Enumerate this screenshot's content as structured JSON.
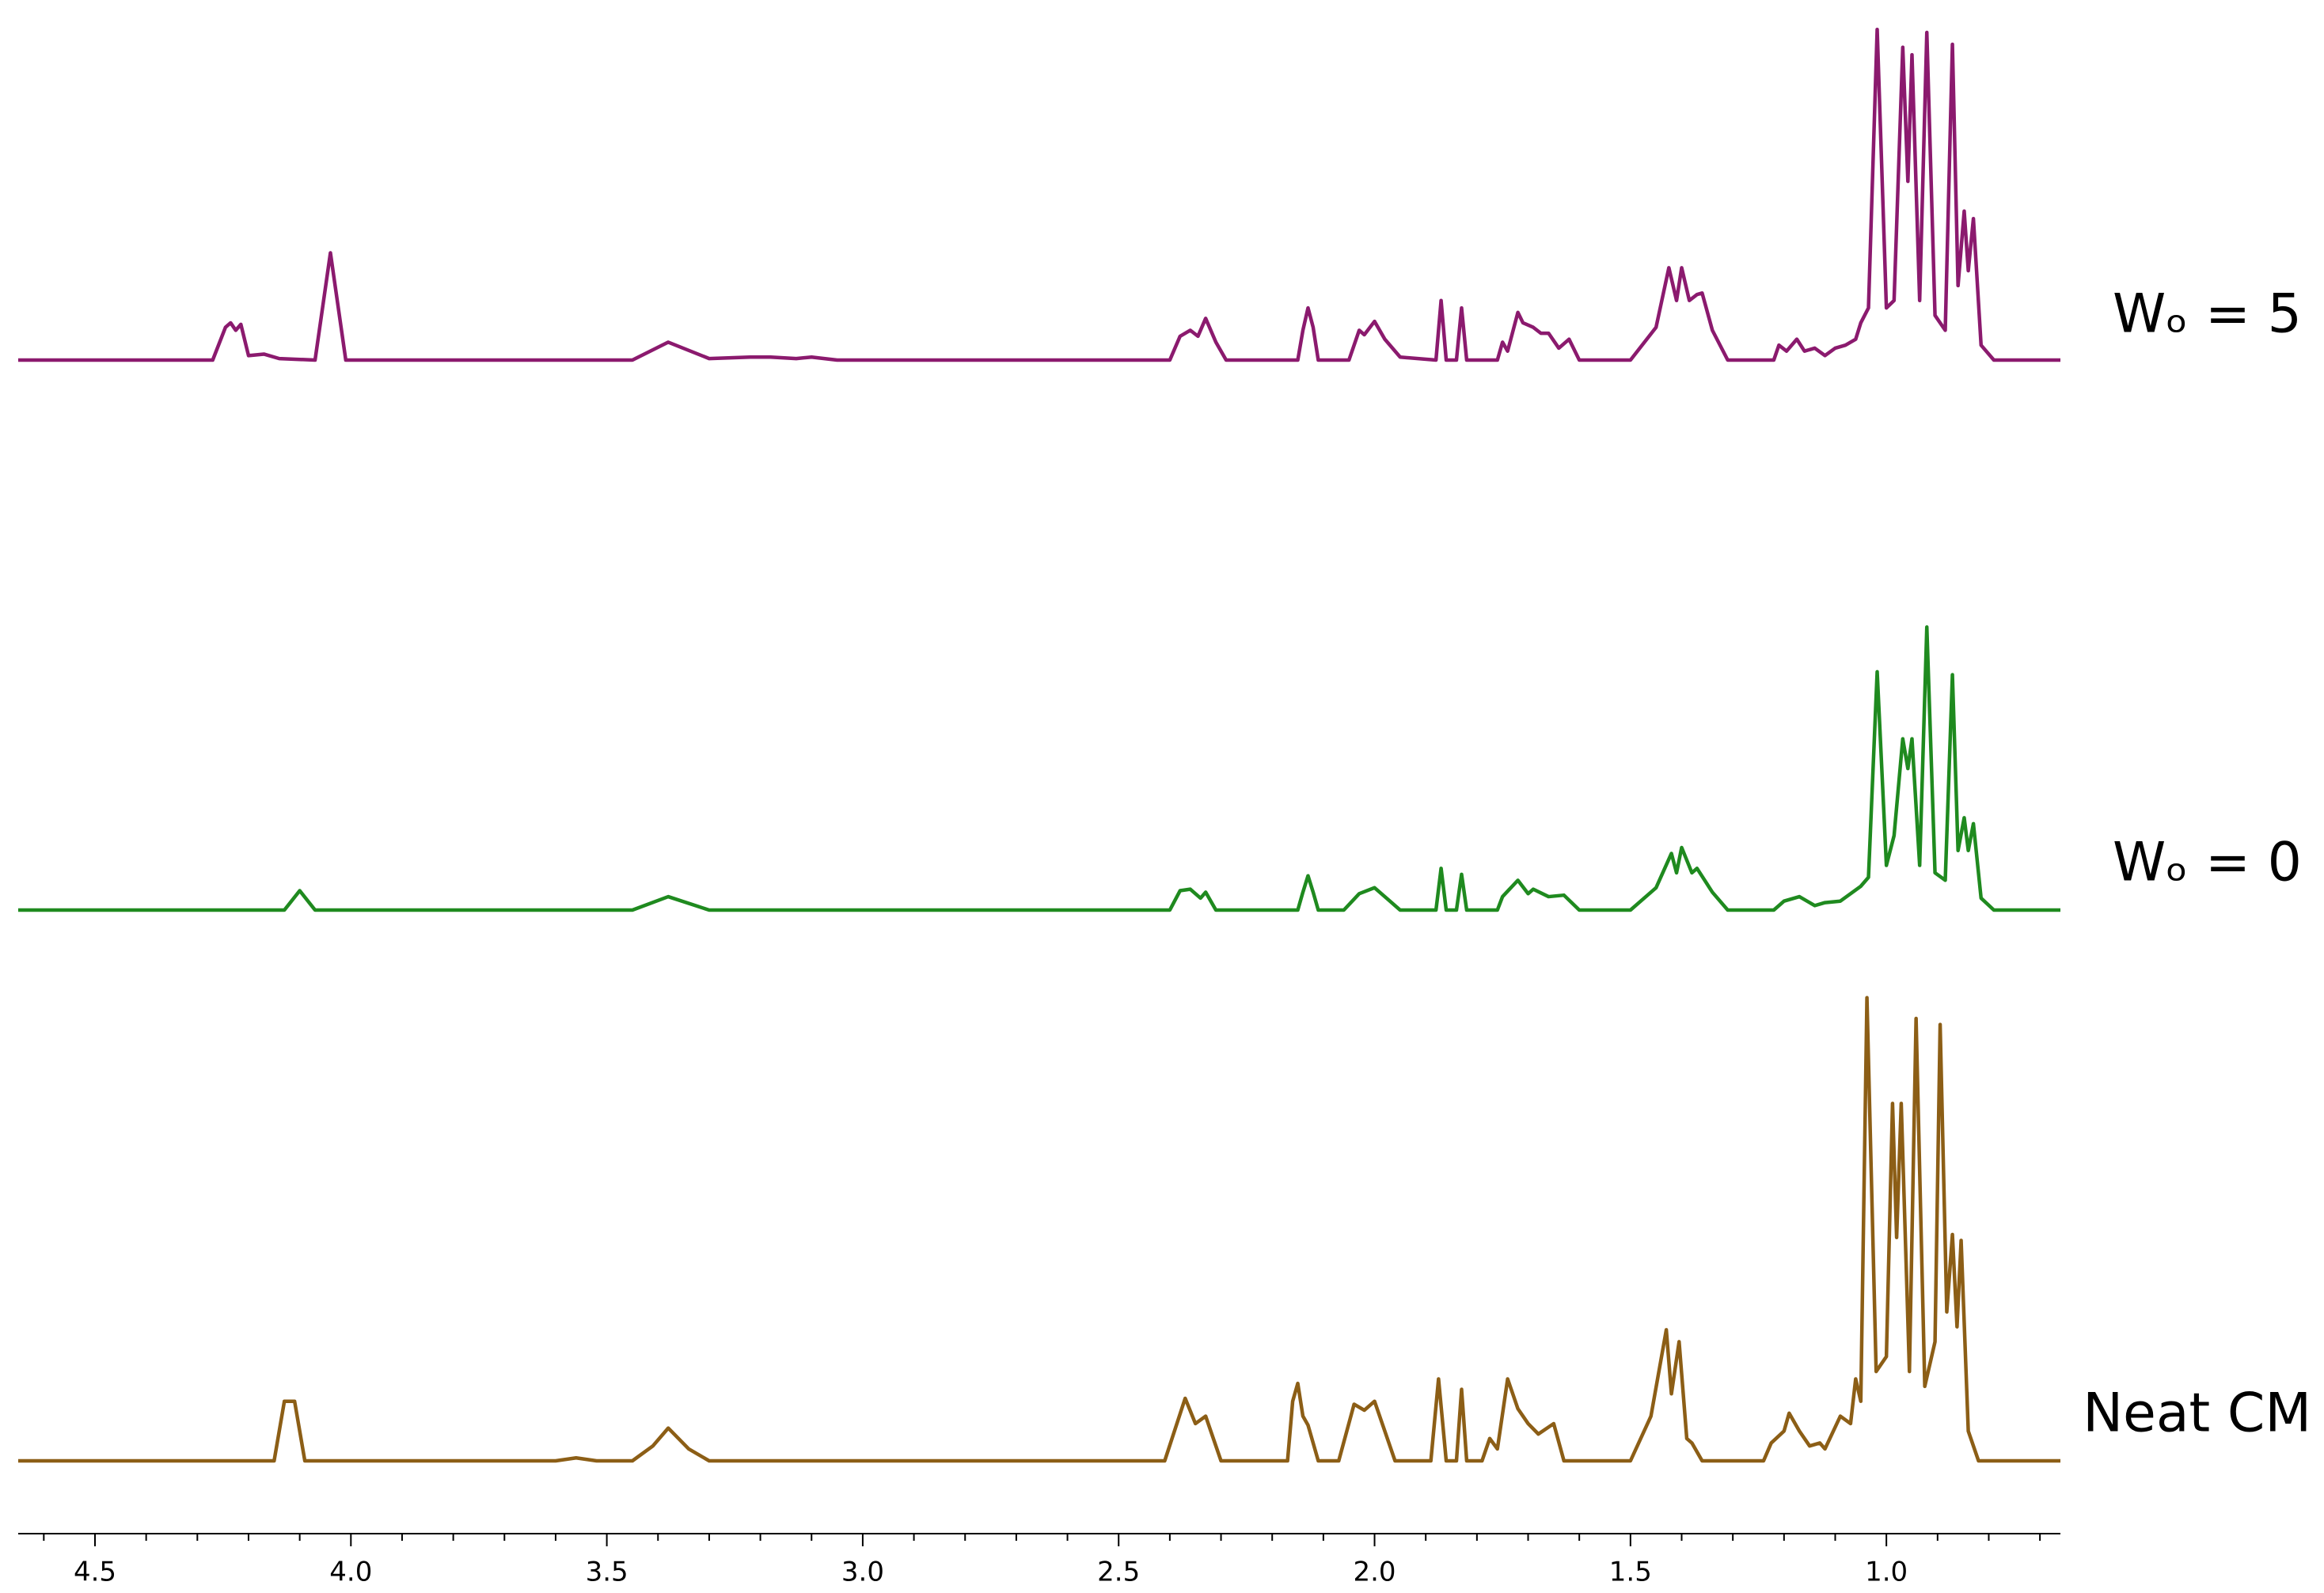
{
  "chart_data": {
    "type": "line",
    "xlim": [
      4.65,
      0.66
    ],
    "xticks": [
      4.5,
      {
        "value": 4,
        "label": "4.0"
      },
      3.5,
      {
        "value": 3,
        "label": "3.0"
      },
      2.5,
      {
        "value": 2,
        "label": "2.0"
      },
      1.5,
      {
        "value": 1,
        "label": "1.0"
      }
    ],
    "xminorticks": [
      4.6,
      4.4,
      4.3,
      4.2,
      4.1,
      3.9,
      3.8,
      3.7,
      3.6,
      3.4,
      3.3,
      3.2,
      3.1,
      2.9,
      2.8,
      2.7,
      2.6,
      2.4,
      2.3,
      2.2,
      2.1,
      1.9,
      1.8,
      1.7,
      1.6,
      1.4,
      1.3,
      1.2,
      1.1,
      0.9,
      0.8,
      0.7
    ],
    "series": [
      {
        "name": "Wₒ = 5",
        "color": "#8b1a6e",
        "x": [
          4.65,
          4.27,
          4.245,
          4.235,
          4.225,
          4.215,
          4.2,
          4.17,
          4.14,
          4.07,
          4.04,
          4.01,
          3.45,
          3.38,
          3.3,
          3.22,
          3.18,
          3.13,
          3.1,
          3.05,
          2.4,
          2.38,
          2.36,
          2.345,
          2.33,
          2.31,
          2.29,
          2.15,
          2.14,
          2.13,
          2.12,
          2.11,
          2.05,
          2.03,
          2.02,
          2.0,
          1.98,
          1.95,
          1.88,
          1.87,
          1.86,
          1.84,
          1.83,
          1.82,
          1.76,
          1.75,
          1.74,
          1.72,
          1.71,
          1.69,
          1.675,
          1.66,
          1.64,
          1.62,
          1.6,
          1.5,
          1.45,
          1.425,
          1.41,
          1.4,
          1.385,
          1.37,
          1.36,
          1.34,
          1.31,
          1.22,
          1.21,
          1.195,
          1.175,
          1.16,
          1.14,
          1.12,
          1.1,
          1.08,
          1.06,
          1.05,
          1.035,
          1.018,
          1.0,
          0.985,
          0.968,
          0.958,
          0.95,
          0.935,
          0.921,
          0.905,
          0.885,
          0.871,
          0.86,
          0.848,
          0.84,
          0.83,
          0.815,
          0.79,
          0.66
        ],
        "values": [
          0,
          0,
          22,
          25,
          20,
          24,
          3,
          4,
          1,
          0,
          72,
          0,
          0,
          12,
          1,
          2,
          2,
          1,
          2,
          0,
          0,
          16,
          20,
          16,
          28,
          12,
          0,
          0,
          20,
          35,
          22,
          0,
          0,
          20,
          17,
          26,
          14,
          2,
          0,
          40,
          0,
          0,
          35,
          0,
          0,
          12,
          6,
          32,
          25,
          22,
          18,
          18,
          8,
          14,
          0,
          0,
          22,
          62,
          40,
          62,
          40,
          44,
          45,
          20,
          0,
          0,
          10,
          6,
          14,
          6,
          8,
          3,
          8,
          10,
          14,
          25,
          35,
          222,
          35,
          40,
          210,
          120,
          205,
          40,
          220,
          30,
          20,
          212,
          50,
          100,
          60,
          95,
          10,
          0,
          0
        ]
      },
      {
        "name": "Wₒ = 0",
        "color": "#1f8a1f",
        "x": [
          4.65,
          4.13,
          4.1,
          4.07,
          3.45,
          3.38,
          3.3,
          2.4,
          2.38,
          2.36,
          2.34,
          2.33,
          2.31,
          2.15,
          2.14,
          2.13,
          2.12,
          2.11,
          2.06,
          2.03,
          2.0,
          1.97,
          1.95,
          1.88,
          1.87,
          1.86,
          1.84,
          1.83,
          1.82,
          1.76,
          1.75,
          1.72,
          1.7,
          1.69,
          1.66,
          1.63,
          1.6,
          1.5,
          1.45,
          1.42,
          1.41,
          1.4,
          1.38,
          1.37,
          1.34,
          1.31,
          1.22,
          1.2,
          1.17,
          1.14,
          1.12,
          1.09,
          1.05,
          1.035,
          1.018,
          1.0,
          0.985,
          0.968,
          0.958,
          0.95,
          0.935,
          0.921,
          0.905,
          0.885,
          0.871,
          0.86,
          0.848,
          0.84,
          0.83,
          0.815,
          0.79,
          0.66
        ],
        "values": [
          0,
          0,
          13,
          0,
          0,
          9,
          0,
          0,
          13,
          14,
          8,
          12,
          0,
          0,
          12,
          23,
          12,
          0,
          0,
          11,
          15,
          6,
          0,
          0,
          28,
          0,
          0,
          24,
          0,
          0,
          9,
          20,
          11,
          14,
          9,
          10,
          0,
          0,
          15,
          38,
          25,
          42,
          25,
          28,
          12,
          0,
          0,
          6,
          9,
          3,
          5,
          6,
          16,
          22,
          160,
          30,
          50,
          115,
          95,
          115,
          30,
          190,
          25,
          20,
          158,
          40,
          62,
          40,
          58,
          8,
          0,
          0
        ]
      },
      {
        "name": "Neat CM",
        "color": "#8c5e16",
        "x": [
          4.65,
          4.15,
          4.13,
          4.11,
          4.09,
          3.6,
          3.56,
          3.52,
          3.45,
          3.41,
          3.38,
          3.34,
          3.3,
          2.41,
          2.37,
          2.35,
          2.33,
          2.3,
          2.17,
          2.16,
          2.15,
          2.14,
          2.13,
          2.11,
          2.07,
          2.04,
          2.02,
          2.0,
          1.98,
          1.96,
          1.89,
          1.875,
          1.86,
          1.84,
          1.83,
          1.82,
          1.79,
          1.775,
          1.76,
          1.74,
          1.72,
          1.7,
          1.68,
          1.65,
          1.63,
          1.5,
          1.46,
          1.43,
          1.42,
          1.405,
          1.39,
          1.38,
          1.36,
          1.24,
          1.225,
          1.2,
          1.19,
          1.17,
          1.15,
          1.13,
          1.12,
          1.09,
          1.07,
          1.06,
          1.05,
          1.038,
          1.02,
          1.0,
          0.988,
          0.98,
          0.971,
          0.955,
          0.942,
          0.925,
          0.905,
          0.895,
          0.882,
          0.871,
          0.862,
          0.854,
          0.84,
          0.82,
          0.66
        ],
        "values": [
          0,
          0,
          40,
          40,
          0,
          0,
          2,
          0,
          0,
          10,
          22,
          8,
          0,
          0,
          42,
          25,
          30,
          0,
          0,
          40,
          52,
          30,
          24,
          0,
          0,
          38,
          34,
          40,
          20,
          0,
          0,
          55,
          0,
          0,
          48,
          0,
          0,
          15,
          8,
          55,
          35,
          25,
          18,
          25,
          0,
          0,
          30,
          88,
          45,
          80,
          15,
          12,
          0,
          0,
          12,
          20,
          32,
          20,
          10,
          12,
          8,
          30,
          25,
          55,
          40,
          311,
          60,
          70,
          240,
          150,
          240,
          60,
          297,
          50,
          80,
          293,
          100,
          152,
          90,
          148,
          20,
          0,
          0
        ]
      }
    ]
  }
}
